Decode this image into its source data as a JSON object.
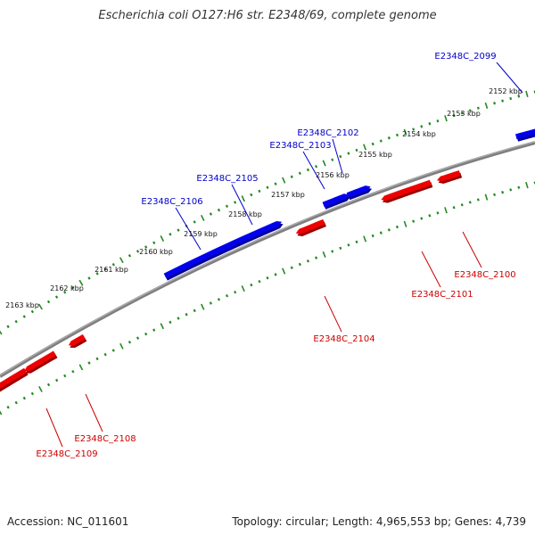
{
  "title": "Escherichia coli O127:H6 str. E2348/69, complete genome",
  "accession": "Accession: NC_011601",
  "summary": "Topology: circular; Length: 4,965,553 bp; Genes: 4,739",
  "colors": {
    "forward": "#0000ee",
    "reverse": "#ee0000",
    "backbone": "#7f7f7f",
    "ticks": "#228b22",
    "label_forward": "#0000cc",
    "label_reverse": "#cc0000"
  },
  "scale": {
    "unit": "kbp",
    "labels": [
      "2152 kbp",
      "2153 kbp",
      "2154 kbp",
      "2155 kbp",
      "2156 kbp",
      "2157 kbp",
      "2158 kbp",
      "2159 kbp",
      "2160 kbp",
      "2161 kbp",
      "2162 kbp",
      "2163 kbp"
    ]
  },
  "genes": [
    {
      "id": "E2348C_2099",
      "strand": "forward"
    },
    {
      "id": "E2348C_2102",
      "strand": "forward"
    },
    {
      "id": "E2348C_2103",
      "strand": "forward"
    },
    {
      "id": "E2348C_2105",
      "strand": "forward"
    },
    {
      "id": "E2348C_2106",
      "strand": "forward"
    },
    {
      "id": "E2348C_2100",
      "strand": "reverse"
    },
    {
      "id": "E2348C_2101",
      "strand": "reverse"
    },
    {
      "id": "E2348C_2104",
      "strand": "reverse"
    },
    {
      "id": "E2348C_2108",
      "strand": "reverse"
    },
    {
      "id": "E2348C_2109",
      "strand": "reverse"
    }
  ]
}
